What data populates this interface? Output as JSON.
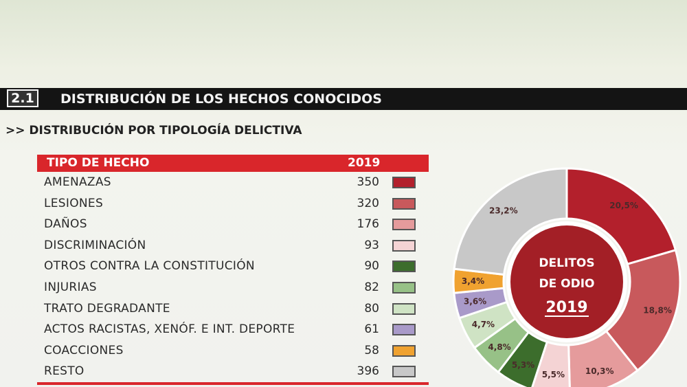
{
  "section": {
    "number": "2.1",
    "title": "DISTRIBUCIÓN DE LOS HECHOS CONOCIDOS"
  },
  "subheading": ">> DISTRIBUCIÓN POR TIPOLOGÍA DELICTIVA",
  "table": {
    "header": {
      "type_label": "TIPO DE HECHO",
      "year_label": "2019"
    },
    "rows": [
      {
        "label": "AMENAZAS",
        "value": "350",
        "color": "#b3202c"
      },
      {
        "label": "LESIONES",
        "value": "320",
        "color": "#c8595c"
      },
      {
        "label": "DAÑOS",
        "value": "176",
        "color": "#e59b9c"
      },
      {
        "label": "DISCRIMINACIÓN",
        "value": "93",
        "color": "#f4d3d4"
      },
      {
        "label": "OTROS CONTRA LA CONSTITUCIÓN",
        "value": "90",
        "color": "#3c6d2c"
      },
      {
        "label": "INJURIAS",
        "value": "82",
        "color": "#97c187"
      },
      {
        "label": "TRATO DEGRADANTE",
        "value": "80",
        "color": "#cfe3c4"
      },
      {
        "label": "ACTOS RACISTAS, XENÓF. E INT. DEPORTE",
        "value": "61",
        "color": "#a99ac9"
      },
      {
        "label": "COACCIONES",
        "value": "58",
        "color": "#f0a230"
      },
      {
        "label": "RESTO",
        "value": "396",
        "color": "#c8c8c8"
      }
    ]
  },
  "chart_data": {
    "type": "pie",
    "donut": true,
    "center_label_lines": [
      "DELITOS",
      "DE ODIO"
    ],
    "center_year": "2019",
    "center_color": "#a31f26",
    "slices": [
      {
        "label": "AMENAZAS",
        "value": 20.5,
        "text": "20,5%",
        "color": "#b3202c"
      },
      {
        "label": "LESIONES",
        "value": 18.8,
        "text": "18,8%",
        "color": "#c8595c"
      },
      {
        "label": "DAÑOS",
        "value": 10.3,
        "text": "10,3%",
        "color": "#e59b9c"
      },
      {
        "label": "DISCRIMINACIÓN",
        "value": 5.5,
        "text": "5,5%",
        "color": "#f4d3d4"
      },
      {
        "label": "OTROS CONTRA LA CONSTITUCIÓN",
        "value": 5.3,
        "text": "5,3%",
        "color": "#3c6d2c"
      },
      {
        "label": "INJURIAS",
        "value": 4.8,
        "text": "4,8%",
        "color": "#97c187"
      },
      {
        "label": "TRATO DEGRADANTE",
        "value": 4.7,
        "text": "4,7%",
        "color": "#cfe3c4"
      },
      {
        "label": "ACTOS RACISTAS, XENÓF. E INT. DEPORTE",
        "value": 3.6,
        "text": "3,6%",
        "color": "#a99ac9"
      },
      {
        "label": "COACCIONES",
        "value": 3.4,
        "text": "3,4%",
        "color": "#f0a230"
      },
      {
        "label": "RESTO",
        "value": 23.2,
        "text": "23,2%",
        "color": "#c8c8c8"
      }
    ]
  }
}
